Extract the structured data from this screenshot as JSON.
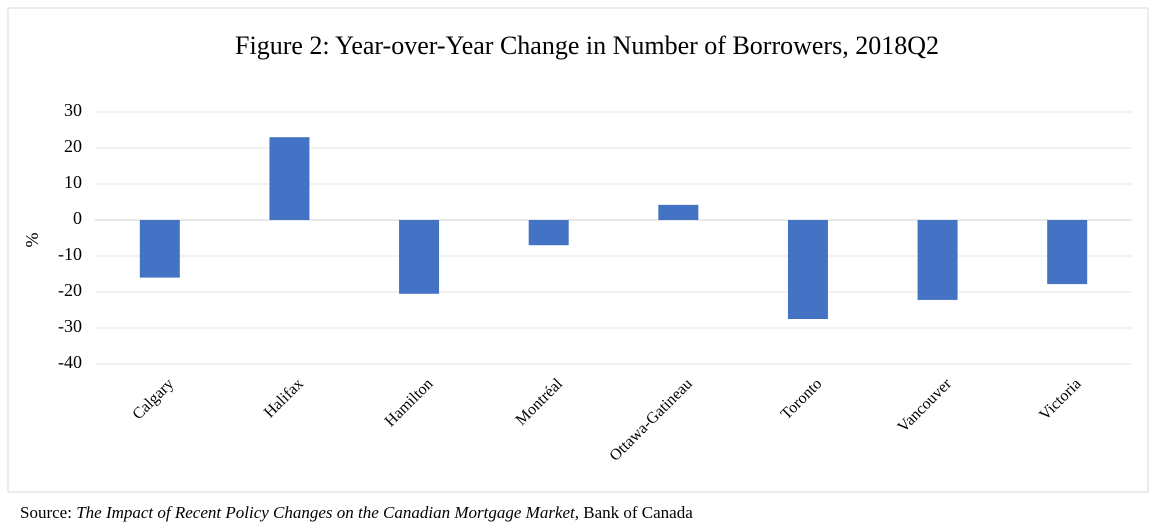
{
  "chart_data": {
    "type": "bar",
    "title": "Figure 2: Year-over-Year Change in Number of Borrowers, 2018Q2",
    "y_label": "%",
    "categories": [
      "Calgary",
      "Halifax",
      "Hamilton",
      "Montréal",
      "Ottawa-Gatineau",
      "Toronto",
      "Vancouver",
      "Victoria"
    ],
    "values": [
      -16,
      23,
      -20.5,
      -7,
      4.2,
      -27.5,
      -22.2,
      -17.8
    ],
    "color": "#4472c4",
    "ylim": [
      -40,
      30
    ],
    "yticks": [
      -40,
      -30,
      -20,
      -10,
      0,
      10,
      20,
      30
    ],
    "grid": true
  },
  "source": {
    "label": "Source:",
    "title": "The Impact of Recent Policy Changes on the Canadian Mortgage Market,",
    "publisher": "Bank of Canada"
  }
}
